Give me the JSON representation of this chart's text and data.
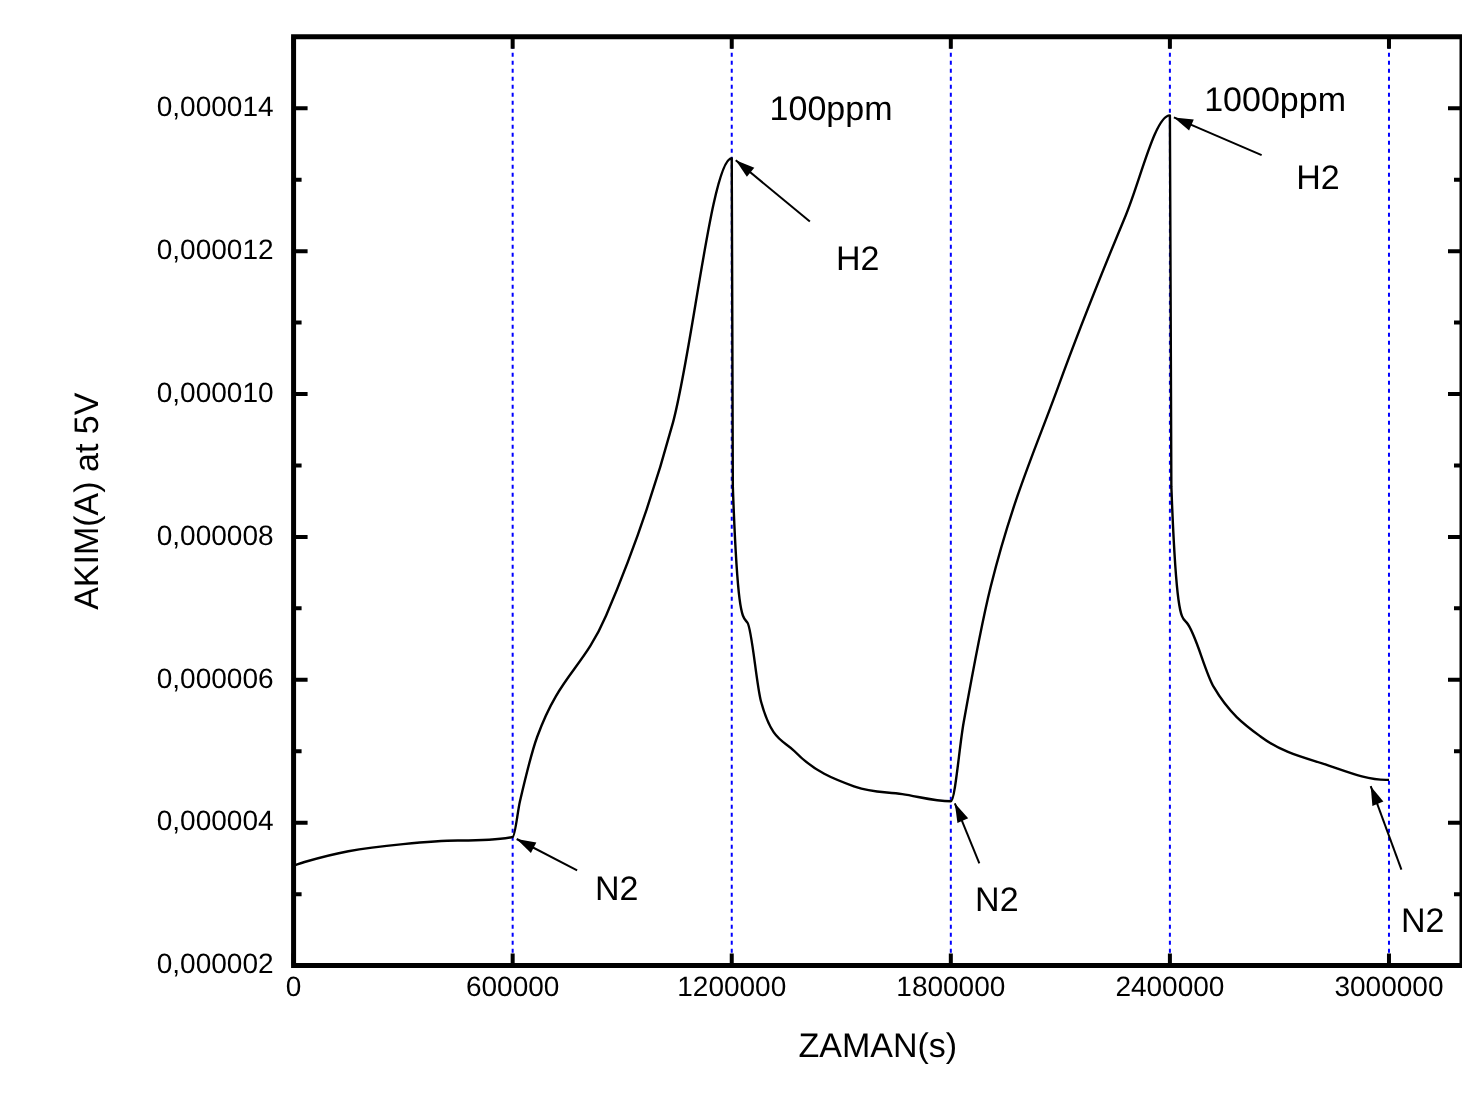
{
  "chart_data": {
    "type": "line",
    "xlabel": "ZAMAN(s)",
    "ylabel": "AKIM(A) at 5V",
    "xlim": [
      0,
      3200000
    ],
    "xticks": [
      0,
      600000,
      1200000,
      1800000,
      2400000,
      3000000
    ],
    "ylim": [
      2e-06,
      1.5e-05
    ],
    "yticks": [
      {
        "value": 2e-06,
        "label": "0,000002"
      },
      {
        "value": 3e-06,
        "label": null
      },
      {
        "value": 4e-06,
        "label": "0,000004"
      },
      {
        "value": 5e-06,
        "label": null
      },
      {
        "value": 6e-06,
        "label": "0,000006"
      },
      {
        "value": 7e-06,
        "label": null
      },
      {
        "value": 8e-06,
        "label": "0,000008"
      },
      {
        "value": 9e-06,
        "label": null
      },
      {
        "value": 1e-05,
        "label": "0,000010"
      },
      {
        "value": 1.1e-05,
        "label": null
      },
      {
        "value": 1.2e-05,
        "label": "0,000012"
      },
      {
        "value": 1.3e-05,
        "label": null
      },
      {
        "value": 1.4e-05,
        "label": "0,000014"
      }
    ],
    "series": [
      {
        "color": "#000000",
        "x": [
          0,
          30000,
          150000,
          300000,
          450000,
          600000,
          620000,
          667000,
          856000,
          1039000,
          1200000,
          1203000,
          1243000,
          1280000,
          1372000,
          1539000,
          1667000,
          1800000,
          1835000,
          1909000,
          2094000,
          2279000,
          2400000,
          2404000,
          2446000,
          2520000,
          2650000,
          2835000,
          2992000,
          3000000
        ],
        "values": [
          3.4e-06,
          3.45e-06,
          3.6e-06,
          3.7e-06,
          3.75e-06,
          3.8e-06,
          4.3e-06,
          5.2e-06,
          6.9e-06,
          9.6e-06,
          1.33e-05,
          8.7e-06,
          6.8e-06,
          5.7e-06,
          5e-06,
          4.5e-06,
          4.4e-06,
          4.3e-06,
          5.4e-06,
          7.3e-06,
          1.01e-05,
          1.25e-05,
          1.39e-05,
          8.7e-06,
          6.8e-06,
          5.9e-06,
          5.2e-06,
          4.8e-06,
          4.6e-06,
          4.6e-06
        ]
      }
    ],
    "marker": "none",
    "line_style": "solid",
    "grid": false,
    "legend": false,
    "ref_lines": [
      {
        "axis": "x",
        "value": 600000,
        "color": "#0000ff",
        "line_style": "dotted"
      },
      {
        "axis": "x",
        "value": 1200000,
        "color": "#0000ff",
        "line_style": "dotted"
      },
      {
        "axis": "x",
        "value": 1800000,
        "color": "#0000ff",
        "line_style": "dotted"
      },
      {
        "axis": "x",
        "value": 2400000,
        "color": "#0000ff",
        "line_style": "dotted"
      },
      {
        "axis": "x",
        "value": 3000000,
        "color": "#0000ff",
        "line_style": "dotted"
      }
    ],
    "annotations": [
      {
        "text": "N2",
        "x": 600000,
        "y": 3.8e-06
      },
      {
        "text": "H2",
        "x": 1200000,
        "y": 1.33e-05
      },
      "100ppm",
      {
        "text": "N2",
        "x": 1800000,
        "y": 4.3e-06
      },
      "1000ppm",
      {
        "text": "H2",
        "x": 2400000,
        "y": 1.39e-05
      },
      {
        "text": "N2",
        "x": 2939000,
        "y": 4.54e-06
      }
    ]
  }
}
